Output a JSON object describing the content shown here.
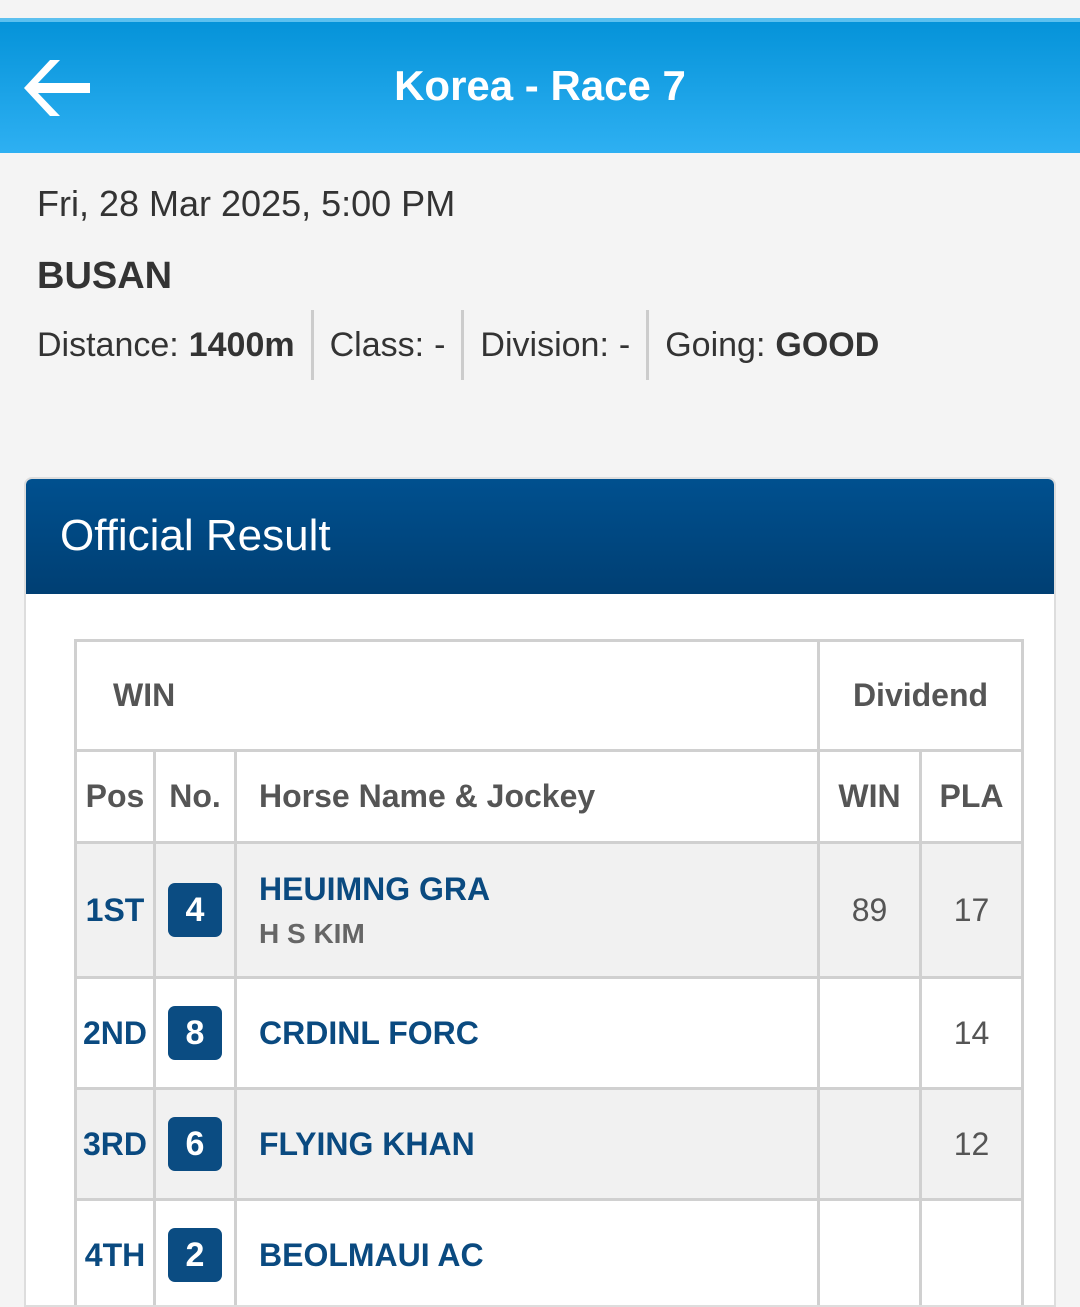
{
  "header": {
    "title": "Korea - Race 7",
    "back_icon": "arrow-left-icon",
    "color": "#0a9ae0"
  },
  "race": {
    "datetime": "Fri, 28 Mar 2025, 5:00 PM",
    "venue": "BUSAN",
    "meta": [
      {
        "label": "Distance:",
        "value": "1400m"
      },
      {
        "label": "Class:",
        "value": "-"
      },
      {
        "label": "Division:",
        "value": "-"
      },
      {
        "label": "Going:",
        "value": "GOOD"
      }
    ]
  },
  "result": {
    "title": "Official Result",
    "group_label": "WIN",
    "dividend_label": "Dividend",
    "columns": {
      "pos": "Pos",
      "no": "No.",
      "horse": "Horse Name & Jockey",
      "win": "WIN",
      "pla": "PLA"
    },
    "rows": [
      {
        "pos": "1ST",
        "no": "4",
        "horse": "HEUIMNG GRA",
        "jockey": "H S KIM",
        "win": "89",
        "pla": "17"
      },
      {
        "pos": "2ND",
        "no": "8",
        "horse": "CRDINL FORC",
        "jockey": "",
        "win": "",
        "pla": "14"
      },
      {
        "pos": "3RD",
        "no": "6",
        "horse": "FLYING KHAN",
        "jockey": "",
        "win": "",
        "pla": "12"
      },
      {
        "pos": "4TH",
        "no": "2",
        "horse": "BEOLMAUI AC",
        "jockey": "",
        "win": "",
        "pla": ""
      }
    ]
  }
}
